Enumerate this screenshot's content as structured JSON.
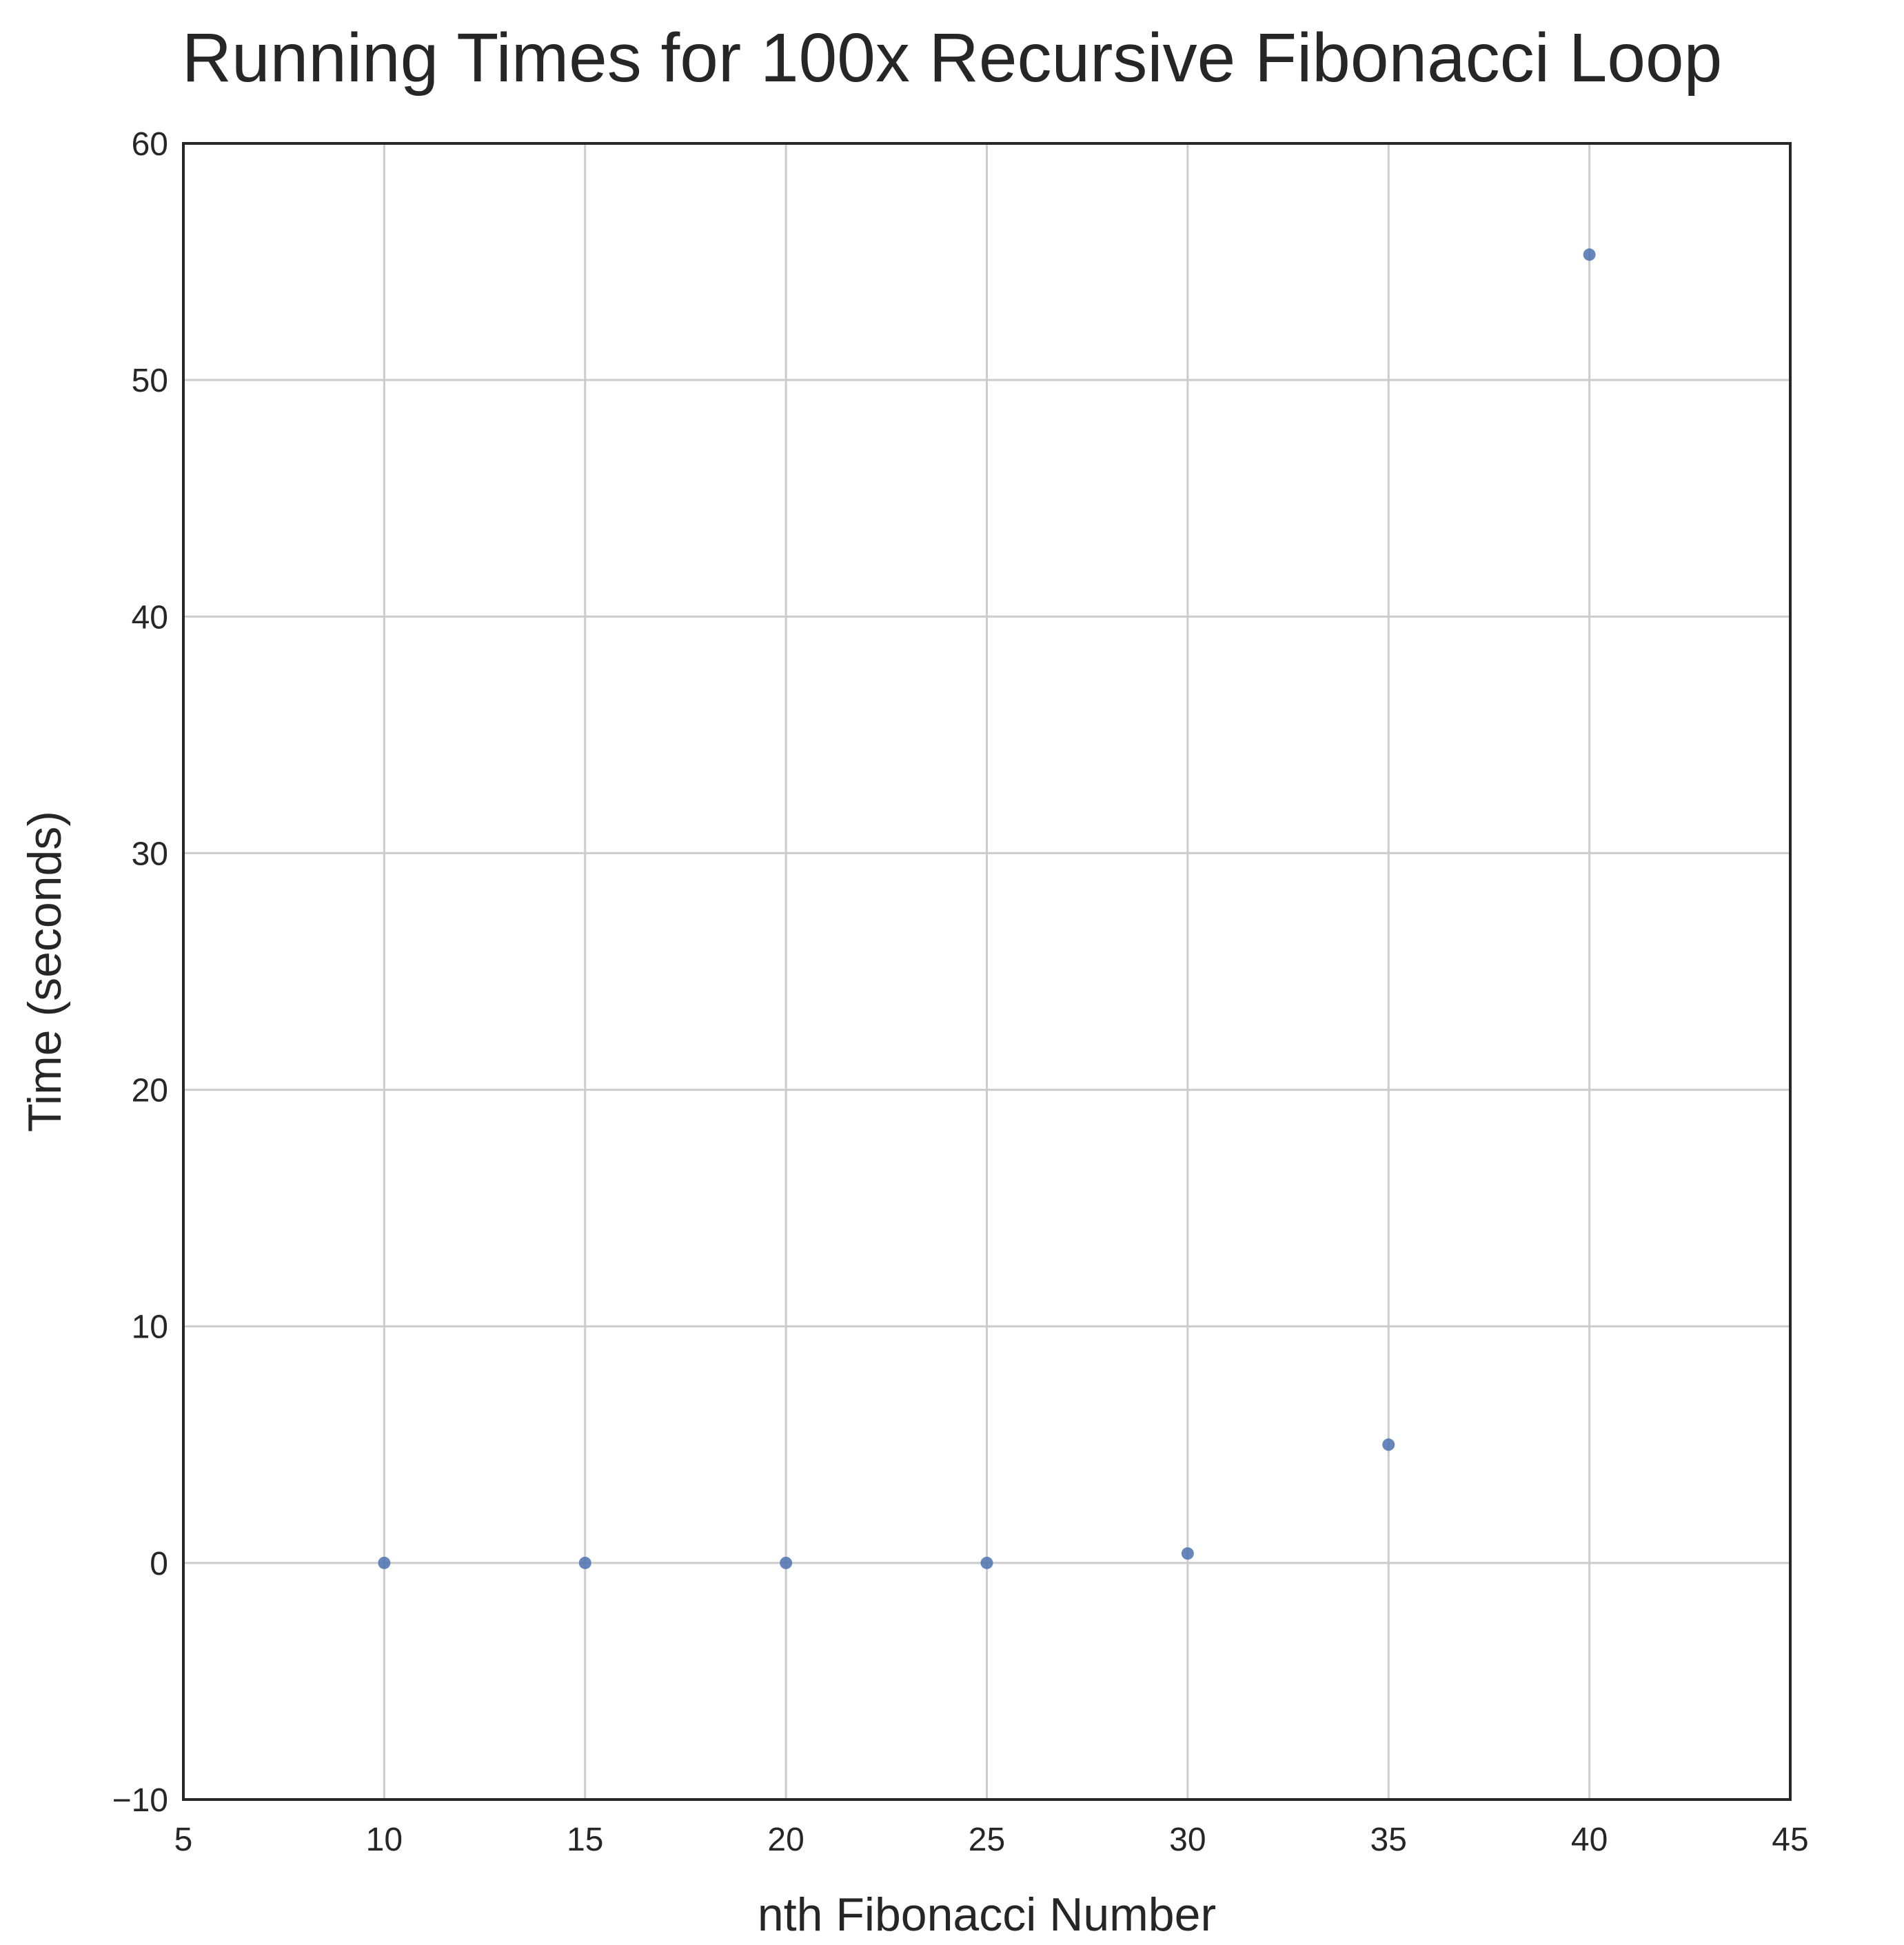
{
  "chart_data": {
    "type": "scatter",
    "title": "Running Times for 100x Recursive Fibonacci Loop",
    "xlabel": "nth Fibonacci Number",
    "ylabel": "Time (seconds)",
    "xlim": [
      5,
      45
    ],
    "ylim": [
      -10,
      60
    ],
    "xticks": [
      5,
      10,
      15,
      20,
      25,
      30,
      35,
      40,
      45
    ],
    "yticks": [
      -10,
      0,
      10,
      20,
      30,
      40,
      50,
      60
    ],
    "xtick_labels": [
      "5",
      "10",
      "15",
      "20",
      "25",
      "30",
      "35",
      "40",
      "45"
    ],
    "ytick_labels": [
      "−10",
      "0",
      "10",
      "20",
      "30",
      "40",
      "50",
      "60"
    ],
    "grid": true,
    "legend": "none",
    "series": [
      {
        "color": "#4c72b0",
        "x": [
          10,
          15,
          20,
          25,
          30,
          35,
          40
        ],
        "y": [
          0.0,
          0.0,
          0.0,
          0.0,
          0.4,
          5.0,
          55.3
        ]
      }
    ]
  }
}
